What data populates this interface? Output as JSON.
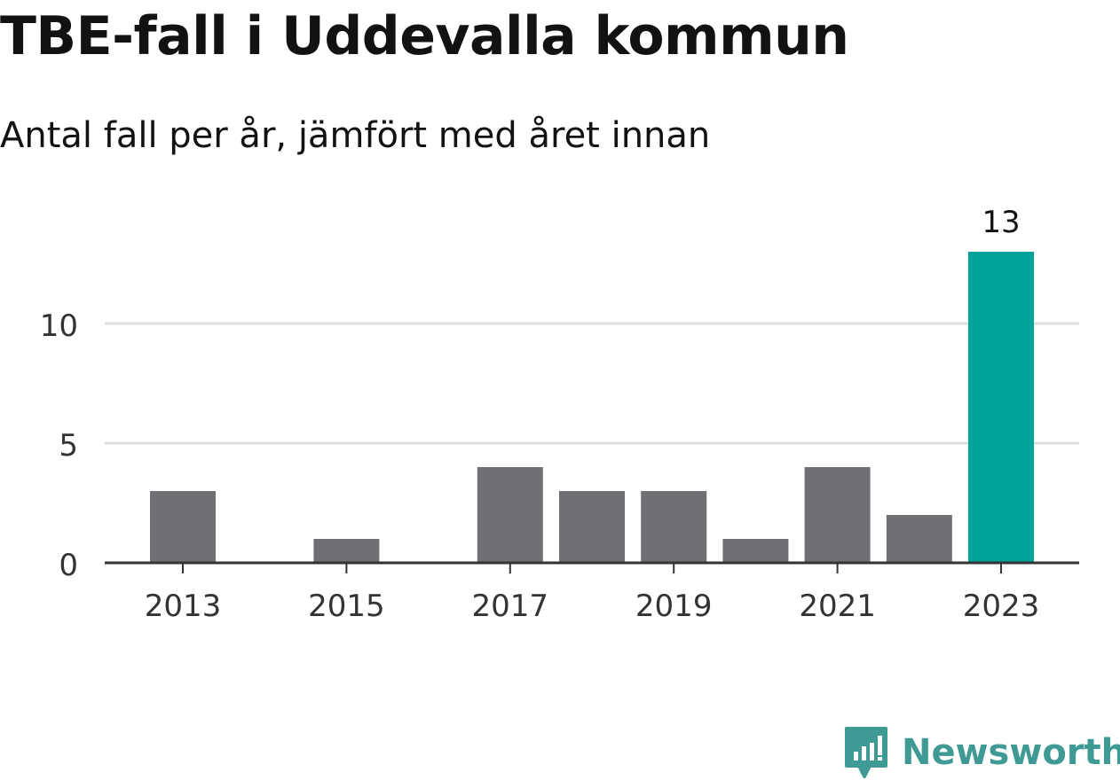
{
  "header": {
    "title": "TBE-fall i Uddevalla kommun",
    "subtitle": "Antal fall per år, jämfört med året innan"
  },
  "chart_data": {
    "type": "bar",
    "categories": [
      "2013",
      "2014",
      "2015",
      "2016",
      "2017",
      "2018",
      "2019",
      "2020",
      "2021",
      "2022",
      "2023"
    ],
    "values": [
      3,
      0,
      1,
      0,
      4,
      3,
      3,
      1,
      4,
      2,
      13
    ],
    "x_tick_labels": [
      "2013",
      "2015",
      "2017",
      "2019",
      "2021",
      "2023"
    ],
    "y_ticks": [
      0,
      5,
      10
    ],
    "ylim": [
      0,
      14
    ],
    "grid": true,
    "highlight": {
      "category": "2023",
      "label": "13"
    },
    "colors": {
      "bar": "#706f74",
      "highlight": "#00a39a",
      "grid": "#dcdcdc",
      "axis": "#333333"
    }
  },
  "branding": {
    "name": "Newsworthy",
    "logo_icon": "newsworthy-chart-bubble-icon",
    "color": "#3f9a95"
  }
}
